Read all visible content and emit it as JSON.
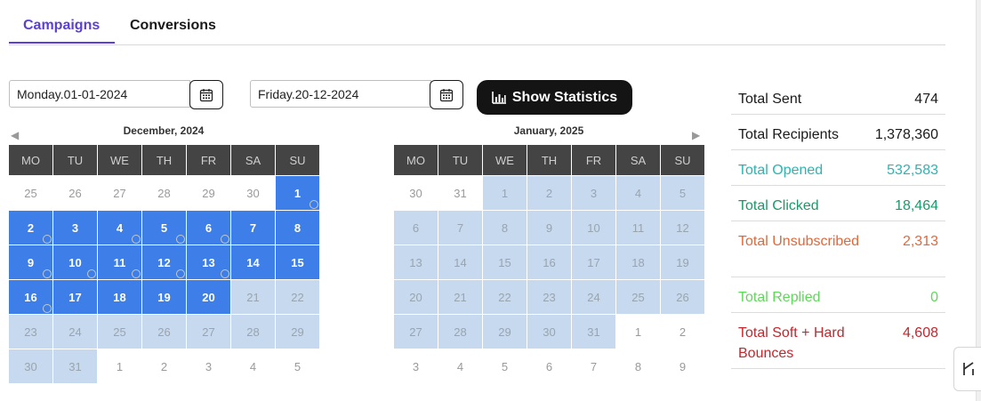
{
  "tabs": [
    {
      "label": "Campaigns",
      "active": true
    },
    {
      "label": "Conversions",
      "active": false
    }
  ],
  "date_range": {
    "start_value": "Monday.01-01-2024",
    "end_value": "Friday.20-12-2024"
  },
  "show_statistics_label": "Show Statistics",
  "weekdays": [
    "MO",
    "TU",
    "WE",
    "TH",
    "FR",
    "SA",
    "SU"
  ],
  "calendars": [
    {
      "title": "December, 2024",
      "weeks": [
        [
          {
            "d": "25",
            "s": "plain"
          },
          {
            "d": "26",
            "s": "plain"
          },
          {
            "d": "27",
            "s": "plain"
          },
          {
            "d": "28",
            "s": "plain"
          },
          {
            "d": "29",
            "s": "plain"
          },
          {
            "d": "30",
            "s": "plain"
          },
          {
            "d": "1",
            "s": "sel",
            "dot": true
          }
        ],
        [
          {
            "d": "2",
            "s": "sel",
            "dot": true
          },
          {
            "d": "3",
            "s": "sel"
          },
          {
            "d": "4",
            "s": "sel",
            "dot": true
          },
          {
            "d": "5",
            "s": "sel",
            "dot": true
          },
          {
            "d": "6",
            "s": "sel",
            "dot": true
          },
          {
            "d": "7",
            "s": "sel"
          },
          {
            "d": "8",
            "s": "sel"
          }
        ],
        [
          {
            "d": "9",
            "s": "sel",
            "dot": true
          },
          {
            "d": "10",
            "s": "sel",
            "dot": true
          },
          {
            "d": "11",
            "s": "sel",
            "dot": true
          },
          {
            "d": "12",
            "s": "sel",
            "dot": true
          },
          {
            "d": "13",
            "s": "sel",
            "dot": true
          },
          {
            "d": "14",
            "s": "sel"
          },
          {
            "d": "15",
            "s": "sel"
          }
        ],
        [
          {
            "d": "16",
            "s": "sel",
            "dot": true
          },
          {
            "d": "17",
            "s": "sel"
          },
          {
            "d": "18",
            "s": "sel"
          },
          {
            "d": "19",
            "s": "sel"
          },
          {
            "d": "20",
            "s": "sel"
          },
          {
            "d": "21",
            "s": "range"
          },
          {
            "d": "22",
            "s": "range"
          }
        ],
        [
          {
            "d": "23",
            "s": "range"
          },
          {
            "d": "24",
            "s": "range"
          },
          {
            "d": "25",
            "s": "range"
          },
          {
            "d": "26",
            "s": "range"
          },
          {
            "d": "27",
            "s": "range"
          },
          {
            "d": "28",
            "s": "range"
          },
          {
            "d": "29",
            "s": "range"
          }
        ],
        [
          {
            "d": "30",
            "s": "range"
          },
          {
            "d": "31",
            "s": "range"
          },
          {
            "d": "1",
            "s": "plain"
          },
          {
            "d": "2",
            "s": "plain"
          },
          {
            "d": "3",
            "s": "plain"
          },
          {
            "d": "4",
            "s": "plain"
          },
          {
            "d": "5",
            "s": "plain"
          }
        ]
      ]
    },
    {
      "title": "January, 2025",
      "weeks": [
        [
          {
            "d": "30",
            "s": "plain"
          },
          {
            "d": "31",
            "s": "plain"
          },
          {
            "d": "1",
            "s": "range"
          },
          {
            "d": "2",
            "s": "range"
          },
          {
            "d": "3",
            "s": "range"
          },
          {
            "d": "4",
            "s": "range"
          },
          {
            "d": "5",
            "s": "range"
          }
        ],
        [
          {
            "d": "6",
            "s": "range"
          },
          {
            "d": "7",
            "s": "range"
          },
          {
            "d": "8",
            "s": "range"
          },
          {
            "d": "9",
            "s": "range"
          },
          {
            "d": "10",
            "s": "range"
          },
          {
            "d": "11",
            "s": "range"
          },
          {
            "d": "12",
            "s": "range"
          }
        ],
        [
          {
            "d": "13",
            "s": "range"
          },
          {
            "d": "14",
            "s": "range"
          },
          {
            "d": "15",
            "s": "range"
          },
          {
            "d": "16",
            "s": "range"
          },
          {
            "d": "17",
            "s": "range"
          },
          {
            "d": "18",
            "s": "range"
          },
          {
            "d": "19",
            "s": "range"
          }
        ],
        [
          {
            "d": "20",
            "s": "range"
          },
          {
            "d": "21",
            "s": "range"
          },
          {
            "d": "22",
            "s": "range"
          },
          {
            "d": "23",
            "s": "range"
          },
          {
            "d": "24",
            "s": "range"
          },
          {
            "d": "25",
            "s": "range"
          },
          {
            "d": "26",
            "s": "range"
          }
        ],
        [
          {
            "d": "27",
            "s": "range"
          },
          {
            "d": "28",
            "s": "range"
          },
          {
            "d": "29",
            "s": "range"
          },
          {
            "d": "30",
            "s": "range"
          },
          {
            "d": "31",
            "s": "range"
          },
          {
            "d": "1",
            "s": "plain"
          },
          {
            "d": "2",
            "s": "plain"
          }
        ],
        [
          {
            "d": "3",
            "s": "plain"
          },
          {
            "d": "4",
            "s": "plain"
          },
          {
            "d": "5",
            "s": "plain"
          },
          {
            "d": "6",
            "s": "plain"
          },
          {
            "d": "7",
            "s": "plain"
          },
          {
            "d": "8",
            "s": "plain"
          },
          {
            "d": "9",
            "s": "plain"
          }
        ]
      ]
    }
  ],
  "stats": [
    {
      "label": "Total Sent",
      "value": "474",
      "color": "#1a1a1a"
    },
    {
      "label": "Total Recipients",
      "value": "1,378,360",
      "color": "#1a1a1a"
    },
    {
      "label": "Total Opened",
      "value": "532,583",
      "color": "#2bb5b0"
    },
    {
      "label": "Total Clicked",
      "value": "18,464",
      "color": "#1a9a6a"
    },
    {
      "label": "Total Unsubscribed",
      "value": "2,313",
      "color": "#e0683a"
    },
    {
      "label": "Total Replied",
      "value": "0",
      "color": "#5fd85a"
    },
    {
      "label": "Total Soft + Hard Bounces",
      "value": "4,608",
      "color": "#c0282e"
    }
  ],
  "icons": {
    "calendar": "calendar-icon",
    "bar_chart": "bar-chart-icon",
    "prev": "chevron-left-icon",
    "next": "chevron-right-icon"
  }
}
